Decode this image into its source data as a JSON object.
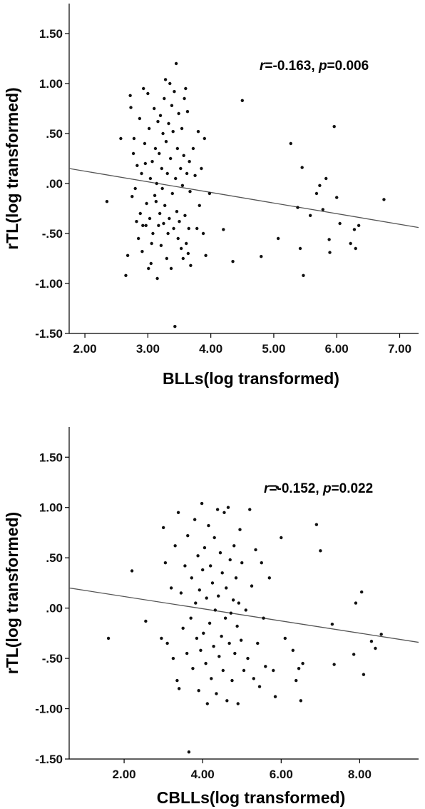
{
  "chart_data": [
    {
      "type": "scatter",
      "xlabel": "BLLs(log transformed)",
      "ylabel": "rTL(log transformed)",
      "xlim": [
        1.75,
        7.3
      ],
      "ylim": [
        -1.5,
        1.8
      ],
      "xticks": [
        2.0,
        3.0,
        4.0,
        5.0,
        6.0,
        7.0
      ],
      "xtick_labels": [
        "2.00",
        "3.00",
        "4.00",
        "5.00",
        "6.00",
        "7.00"
      ],
      "yticks": [
        1.5,
        1.0,
        0.5,
        0.0,
        -0.5,
        -1.0,
        -1.5
      ],
      "ytick_labels": [
        "1.50",
        "1.00",
        ".50",
        ".00",
        "-.50",
        "-1.00",
        "-1.50"
      ],
      "annotation": {
        "r_label": "r",
        "r_value": "=-0.163, ",
        "p_label": "p",
        "p_value": "=0.006"
      },
      "fit_line": {
        "x": [
          1.75,
          7.3
        ],
        "y": [
          0.15,
          -0.44
        ]
      },
      "series": [
        {
          "values": [
            [
              2.35,
              -0.18
            ],
            [
              2.57,
              0.45
            ],
            [
              2.65,
              -0.92
            ],
            [
              2.68,
              -0.72
            ],
            [
              2.72,
              0.88
            ],
            [
              2.73,
              0.76
            ],
            [
              2.75,
              -0.13
            ],
            [
              2.77,
              0.3
            ],
            [
              2.78,
              0.45
            ],
            [
              2.8,
              -0.05
            ],
            [
              2.82,
              -0.38
            ],
            [
              2.83,
              0.18
            ],
            [
              2.85,
              -0.55
            ],
            [
              2.87,
              0.65
            ],
            [
              2.88,
              -0.3
            ],
            [
              2.9,
              0.1
            ],
            [
              2.91,
              -0.68
            ],
            [
              2.92,
              -0.42
            ],
            [
              2.93,
              0.95
            ],
            [
              2.95,
              0.4
            ],
            [
              2.96,
              0.2
            ],
            [
              2.97,
              -0.42
            ],
            [
              2.98,
              -0.2
            ],
            [
              3.0,
              0.9
            ],
            [
              3.01,
              -0.85
            ],
            [
              3.02,
              0.55
            ],
            [
              3.03,
              -0.35
            ],
            [
              3.04,
              0.05
            ],
            [
              3.05,
              -0.8
            ],
            [
              3.06,
              -0.6
            ],
            [
              3.07,
              0.22
            ],
            [
              3.08,
              -0.5
            ],
            [
              3.1,
              0.75
            ],
            [
              3.11,
              -0.12
            ],
            [
              3.12,
              0.35
            ],
            [
              3.13,
              -0.18
            ],
            [
              3.14,
              0.0
            ],
            [
              3.15,
              -0.95
            ],
            [
              3.16,
              0.62
            ],
            [
              3.17,
              -0.42
            ],
            [
              3.18,
              0.3
            ],
            [
              3.19,
              -0.3
            ],
            [
              3.2,
              0.68
            ],
            [
              3.21,
              -0.62
            ],
            [
              3.22,
              0.15
            ],
            [
              3.23,
              -0.05
            ],
            [
              3.24,
              0.5
            ],
            [
              3.25,
              -0.4
            ],
            [
              3.26,
              0.85
            ],
            [
              3.27,
              -0.22
            ],
            [
              3.28,
              1.04
            ],
            [
              3.29,
              0.42
            ],
            [
              3.3,
              -0.75
            ],
            [
              3.31,
              0.1
            ],
            [
              3.32,
              -0.5
            ],
            [
              3.33,
              0.6
            ],
            [
              3.34,
              -0.35
            ],
            [
              3.35,
              1.0
            ],
            [
              3.36,
              0.25
            ],
            [
              3.37,
              -0.85
            ],
            [
              3.38,
              0.78
            ],
            [
              3.39,
              -0.1
            ],
            [
              3.4,
              0.52
            ],
            [
              3.41,
              -0.45
            ],
            [
              3.42,
              0.92
            ],
            [
              3.43,
              -1.43
            ],
            [
              3.44,
              0.05
            ],
            [
              3.45,
              1.2
            ],
            [
              3.46,
              -0.28
            ],
            [
              3.47,
              0.35
            ],
            [
              3.48,
              -0.55
            ],
            [
              3.49,
              0.7
            ],
            [
              3.5,
              -0.38
            ],
            [
              3.52,
              0.15
            ],
            [
              3.53,
              -0.65
            ],
            [
              3.54,
              0.55
            ],
            [
              3.55,
              -0.02
            ],
            [
              3.56,
              -0.75
            ],
            [
              3.57,
              0.28
            ],
            [
              3.58,
              0.85
            ],
            [
              3.59,
              -0.32
            ],
            [
              3.6,
              0.95
            ],
            [
              3.61,
              -0.6
            ],
            [
              3.62,
              0.1
            ],
            [
              3.63,
              0.72
            ],
            [
              3.64,
              -0.7
            ],
            [
              3.65,
              -0.45
            ],
            [
              3.66,
              0.22
            ],
            [
              3.67,
              -0.08
            ],
            [
              3.68,
              -0.82
            ],
            [
              3.72,
              0.35
            ],
            [
              3.75,
              0.08
            ],
            [
              3.78,
              -0.45
            ],
            [
              3.8,
              0.52
            ],
            [
              3.82,
              -0.22
            ],
            [
              3.85,
              0.15
            ],
            [
              3.88,
              -0.5
            ],
            [
              3.9,
              0.45
            ],
            [
              3.92,
              -0.72
            ],
            [
              3.98,
              -0.1
            ],
            [
              4.2,
              -0.46
            ],
            [
              4.35,
              -0.78
            ],
            [
              4.5,
              0.83
            ],
            [
              4.8,
              -0.73
            ],
            [
              5.07,
              -0.55
            ],
            [
              5.27,
              0.4
            ],
            [
              5.38,
              -0.24
            ],
            [
              5.42,
              -0.65
            ],
            [
              5.45,
              0.16
            ],
            [
              5.47,
              -0.92
            ],
            [
              5.58,
              -0.32
            ],
            [
              5.68,
              -0.1
            ],
            [
              5.73,
              -0.02
            ],
            [
              5.78,
              -0.26
            ],
            [
              5.83,
              0.05
            ],
            [
              5.88,
              -0.56
            ],
            [
              5.89,
              -0.69
            ],
            [
              5.96,
              0.57
            ],
            [
              6.0,
              -0.14
            ],
            [
              6.05,
              -0.4
            ],
            [
              6.22,
              -0.6
            ],
            [
              6.28,
              -0.46
            ],
            [
              6.3,
              -0.65
            ],
            [
              6.35,
              -0.42
            ],
            [
              6.75,
              -0.16
            ]
          ]
        }
      ]
    },
    {
      "type": "scatter",
      "xlabel": "CBLLs(log transformed)",
      "ylabel": "rTL(log transformed)",
      "xlim": [
        0.6,
        9.5
      ],
      "ylim": [
        -1.5,
        1.8
      ],
      "xticks": [
        2.0,
        4.0,
        6.0,
        8.0
      ],
      "xtick_labels": [
        "2.00",
        "4.00",
        "6.00",
        "8.00"
      ],
      "yticks": [
        1.5,
        1.0,
        0.5,
        0.0,
        -0.5,
        -1.0,
        -1.5
      ],
      "ytick_labels": [
        "1.50",
        "1.00",
        ".50",
        ".00",
        "-.50",
        "-1.00",
        "-1.50"
      ],
      "annotation": {
        "r_label": "r",
        "r_value": "=-0.152, ",
        "p_label": "p",
        "p_value": "=0.022"
      },
      "fit_line": {
        "x": [
          0.6,
          9.5
        ],
        "y": [
          0.2,
          -0.34
        ]
      },
      "series": [
        {
          "values": [
            [
              1.6,
              -0.3
            ],
            [
              2.2,
              0.37
            ],
            [
              2.55,
              -0.13
            ],
            [
              2.95,
              -0.3
            ],
            [
              3.0,
              0.8
            ],
            [
              3.05,
              0.45
            ],
            [
              3.1,
              -0.35
            ],
            [
              3.2,
              0.2
            ],
            [
              3.25,
              -0.5
            ],
            [
              3.3,
              0.62
            ],
            [
              3.35,
              -0.72
            ],
            [
              3.38,
              0.95
            ],
            [
              3.4,
              -0.8
            ],
            [
              3.45,
              0.15
            ],
            [
              3.5,
              -0.2
            ],
            [
              3.55,
              0.42
            ],
            [
              3.6,
              -0.45
            ],
            [
              3.62,
              0.72
            ],
            [
              3.65,
              -1.43
            ],
            [
              3.7,
              -0.1
            ],
            [
              3.72,
              0.3
            ],
            [
              3.75,
              -0.6
            ],
            [
              3.8,
              0.88
            ],
            [
              3.82,
              0.05
            ],
            [
              3.85,
              -0.3
            ],
            [
              3.88,
              0.52
            ],
            [
              3.9,
              -0.82
            ],
            [
              3.92,
              0.18
            ],
            [
              3.95,
              -0.42
            ],
            [
              3.98,
              1.04
            ],
            [
              4.0,
              0.38
            ],
            [
              4.02,
              -0.25
            ],
            [
              4.05,
              0.6
            ],
            [
              4.08,
              -0.55
            ],
            [
              4.1,
              0.1
            ],
            [
              4.12,
              -0.95
            ],
            [
              4.15,
              0.82
            ],
            [
              4.18,
              -0.15
            ],
            [
              4.2,
              0.42
            ],
            [
              4.22,
              -0.7
            ],
            [
              4.25,
              0.25
            ],
            [
              4.28,
              -0.38
            ],
            [
              4.3,
              0.7
            ],
            [
              4.32,
              -0.02
            ],
            [
              4.35,
              -0.85
            ],
            [
              4.38,
              0.98
            ],
            [
              4.4,
              0.12
            ],
            [
              4.42,
              -0.48
            ],
            [
              4.45,
              0.55
            ],
            [
              4.48,
              -0.28
            ],
            [
              4.5,
              0.35
            ],
            [
              4.52,
              -0.62
            ],
            [
              4.55,
              0.95
            ],
            [
              4.58,
              -0.1
            ],
            [
              4.6,
              0.2
            ],
            [
              4.62,
              -0.92
            ],
            [
              4.65,
              1.0
            ],
            [
              4.68,
              -0.35
            ],
            [
              4.7,
              0.48
            ],
            [
              4.72,
              -0.05
            ],
            [
              4.75,
              -0.72
            ],
            [
              4.78,
              0.08
            ],
            [
              4.8,
              0.62
            ],
            [
              4.82,
              -0.45
            ],
            [
              4.85,
              0.3
            ],
            [
              4.88,
              -0.18
            ],
            [
              4.9,
              -0.95
            ],
            [
              4.92,
              0.05
            ],
            [
              4.95,
              0.78
            ],
            [
              4.98,
              -0.32
            ],
            [
              5.0,
              0.45
            ],
            [
              5.05,
              -0.62
            ],
            [
              5.1,
              -0.02
            ],
            [
              5.15,
              -0.5
            ],
            [
              5.2,
              0.98
            ],
            [
              5.25,
              0.22
            ],
            [
              5.3,
              -0.7
            ],
            [
              5.35,
              0.58
            ],
            [
              5.4,
              -0.35
            ],
            [
              5.45,
              -0.78
            ],
            [
              5.5,
              0.45
            ],
            [
              5.55,
              -0.1
            ],
            [
              5.6,
              -0.58
            ],
            [
              5.7,
              0.3
            ],
            [
              5.8,
              -0.62
            ],
            [
              5.85,
              -0.88
            ],
            [
              5.9,
              1.2
            ],
            [
              6.0,
              0.7
            ],
            [
              6.1,
              -0.3
            ],
            [
              6.3,
              -0.42
            ],
            [
              6.38,
              -0.72
            ],
            [
              6.45,
              -0.6
            ],
            [
              6.5,
              -0.92
            ],
            [
              6.55,
              -0.55
            ],
            [
              6.9,
              0.83
            ],
            [
              7.0,
              0.57
            ],
            [
              7.3,
              -0.16
            ],
            [
              7.35,
              -0.56
            ],
            [
              7.85,
              -0.46
            ],
            [
              7.9,
              0.05
            ],
            [
              8.05,
              0.16
            ],
            [
              8.1,
              -0.66
            ],
            [
              8.3,
              -0.33
            ],
            [
              8.4,
              -0.4
            ],
            [
              8.55,
              -0.26
            ]
          ]
        }
      ]
    }
  ]
}
